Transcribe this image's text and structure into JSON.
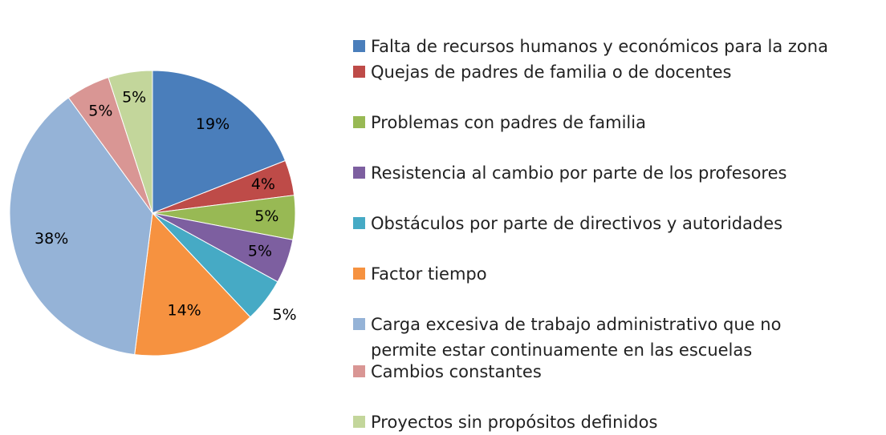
{
  "chart_data": {
    "type": "pie",
    "categories": [
      "Falta de recursos humanos y económicos para la zona",
      "Quejas de padres de familia o de docentes",
      "Problemas con padres de familia",
      "Resistencia al cambio por parte de los profesores",
      "Obstáculos por parte de directivos y autoridades",
      "Factor tiempo",
      "Carga excesiva de trabajo administrativo que no permite estar continuamente en las escuelas",
      "Cambios constantes",
      "Proyectos sin propósitos definidos"
    ],
    "values": [
      19,
      4,
      5,
      5,
      5,
      14,
      38,
      5,
      5
    ],
    "value_labels": [
      "19%",
      "4%",
      "5%",
      "5%",
      "5%",
      "14%",
      "38%",
      "5%",
      "5%"
    ],
    "colors": [
      "#4A7EBB",
      "#BE4B48",
      "#98B954",
      "#7D5FA0",
      "#46AAC5",
      "#F69240",
      "#95B3D7",
      "#D99694",
      "#C3D69B"
    ]
  }
}
